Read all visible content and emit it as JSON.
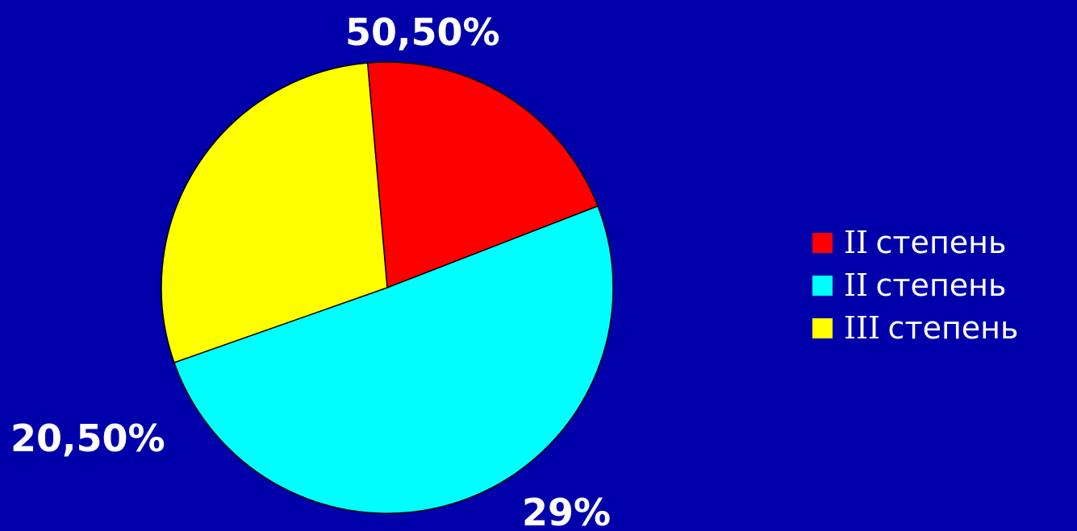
{
  "colors": {
    "background": "#0000AA"
  },
  "chart_data": {
    "type": "pie",
    "slices": [
      {
        "label": "II степень",
        "value": 20.5,
        "display": "20,50%",
        "color": "#FF0000"
      },
      {
        "label": "II степень",
        "value": 50.5,
        "display": "50,50%",
        "color": "#00FFFF"
      },
      {
        "label": "III степень",
        "value": 29,
        "display": "29%",
        "color": "#FFFF00"
      }
    ],
    "start_angle_deg": 265,
    "direction": "clockwise",
    "legend": {
      "position": "right",
      "items": [
        {
          "roman": "II",
          "word": "степень",
          "color": "#FF0000"
        },
        {
          "roman": "II",
          "word": "степень",
          "color": "#00FFFF"
        },
        {
          "roman": "III",
          "word": "степень",
          "color": "#FFFF00"
        }
      ]
    }
  }
}
